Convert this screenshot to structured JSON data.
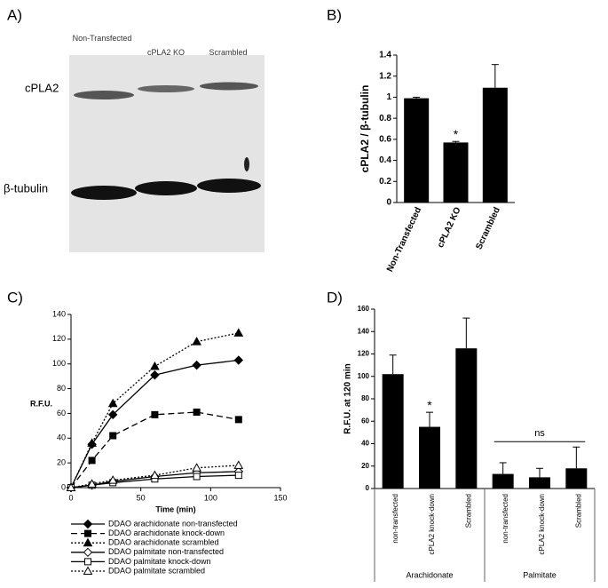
{
  "panels": [
    "A)",
    "B)",
    "C)",
    "D)"
  ],
  "blot": {
    "lanes": [
      "Non-Transfected",
      "cPLA2 KO",
      "Scrambled"
    ],
    "bands": [
      "cPLA2",
      "β-tubulin"
    ]
  },
  "chart_data": [
    {
      "type": "bar",
      "categories": [
        "Non-Transfected",
        "cPLA2 KO",
        "Scrambled"
      ],
      "values": [
        0.99,
        0.57,
        1.09
      ],
      "errors": [
        0.01,
        0.01,
        0.22
      ],
      "color": "#000000",
      "ylabel": "cPLA2 / β-tubulin",
      "ylim": [
        0,
        1.4
      ],
      "yticks": [
        0,
        0.2,
        0.4,
        0.6,
        0.8,
        1,
        1.2,
        1.4
      ],
      "annotations": [
        "*"
      ]
    },
    {
      "type": "line",
      "x": [
        0,
        15,
        30,
        60,
        90,
        120
      ],
      "xlabel": "Time (min)",
      "ylabel": "R.F.U.",
      "xlim": [
        0,
        150
      ],
      "xticks": [
        0,
        50,
        100,
        150
      ],
      "ylim": [
        0,
        140
      ],
      "yticks": [
        0,
        20,
        40,
        60,
        80,
        100,
        120,
        140
      ],
      "series": [
        {
          "name": "DDAO arachidonate non-transfected",
          "color": "#000000",
          "marker": "diamond",
          "filled": true,
          "line_style": "solid",
          "values": [
            0,
            35,
            59,
            91,
            99,
            103
          ]
        },
        {
          "name": "DDAO arachidonate knock-down",
          "color": "#000000",
          "marker": "square",
          "filled": true,
          "line_style": "dashed",
          "values": [
            0,
            22,
            42,
            59,
            61,
            55
          ]
        },
        {
          "name": "DDAO arachidonate scrambled",
          "color": "#000000",
          "marker": "triangle",
          "filled": true,
          "line_style": "dotted",
          "values": [
            0,
            36,
            68,
            98,
            118,
            125
          ]
        },
        {
          "name": "DDAO palmitate non-transfected",
          "color": "#000000",
          "marker": "diamond",
          "filled": false,
          "line_style": "solid",
          "values": [
            0,
            2,
            5,
            9,
            12,
            13
          ]
        },
        {
          "name": "DDAO palmitate knock-down",
          "color": "#000000",
          "marker": "square",
          "filled": false,
          "line_style": "solid",
          "values": [
            0,
            2,
            4,
            7,
            9,
            10
          ]
        },
        {
          "name": "DDAO palmitate scrambled",
          "color": "#000000",
          "marker": "triangle",
          "filled": false,
          "line_style": "dotted",
          "values": [
            0,
            3,
            6,
            10,
            16,
            18
          ]
        }
      ]
    },
    {
      "type": "bar",
      "categories": [
        "non-transfected",
        "cPLA2 knock-down",
        "Scrambled",
        "non-transfected",
        "cPLA2 knock-down",
        "Scrambled"
      ],
      "groups": [
        "Arachidonate",
        "Palmitate"
      ],
      "values": [
        102,
        55,
        125,
        13,
        10,
        18
      ],
      "errors": [
        17,
        13,
        27,
        10,
        8,
        19
      ],
      "color": "#000000",
      "ylabel": "R.F.U. at 120 min",
      "ylim": [
        0,
        160
      ],
      "yticks": [
        0,
        20,
        40,
        60,
        80,
        100,
        120,
        140,
        160
      ],
      "annotations": [
        "*",
        "ns"
      ]
    }
  ]
}
